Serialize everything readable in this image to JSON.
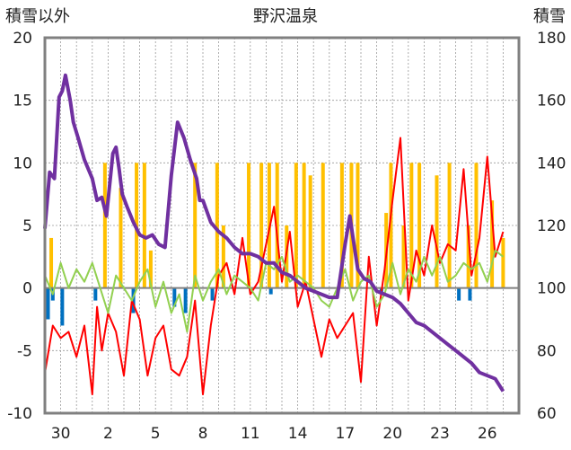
{
  "chart_data": {
    "type": "line",
    "title": "野沢温泉",
    "left_axis_label": "積雪以外",
    "right_axis_label": "積雪",
    "left_ylim": [
      -10,
      20
    ],
    "right_ylim": [
      60,
      180
    ],
    "left_ticks": [
      "20",
      "15",
      "10",
      "5",
      "0",
      "-5",
      "-10"
    ],
    "right_ticks": [
      "180",
      "160",
      "140",
      "120",
      "100",
      "80",
      "60"
    ],
    "x_tick_labels": [
      "30",
      "2",
      "5",
      "8",
      "11",
      "14",
      "17",
      "20",
      "23",
      "26"
    ],
    "x_tick_days": [
      1,
      4,
      7,
      10,
      13,
      16,
      19,
      22,
      25,
      28
    ],
    "x_range": [
      0,
      30
    ],
    "grid": true,
    "colors": {
      "snow_depth": "#7030a0",
      "temperature": "#ff0000",
      "temp_anomaly": "#92d050",
      "snowfall": "#ffc000",
      "negative_bars": "#0070c0",
      "zero_line": "#808080",
      "frame": "#808080"
    },
    "series": [
      {
        "role": "snow_depth",
        "axis": "right",
        "x": [
          0,
          0.3,
          0.6,
          0.9,
          1.1,
          1.3,
          1.6,
          1.8,
          2.1,
          2.5,
          3.0,
          3.3,
          3.6,
          3.9,
          4.3,
          4.5,
          4.7,
          4.9,
          5.2,
          5.6,
          6.0,
          6.4,
          6.8,
          7.2,
          7.6,
          8.0,
          8.4,
          8.8,
          9.2,
          9.6,
          9.8,
          10.0,
          10.5,
          11.0,
          11.5,
          12.0,
          12.5,
          13.0,
          13.5,
          14.0,
          14.5,
          15.0,
          15.5,
          16.0,
          16.5,
          17.0,
          17.5,
          18.0,
          18.5,
          19.0,
          19.3,
          19.5,
          19.8,
          20.2,
          20.6,
          21.0,
          21.5,
          22.0,
          22.5,
          23.0,
          23.5,
          24.0,
          24.5,
          25.0,
          25.5,
          26.0,
          26.5,
          27.0,
          27.5,
          28.0,
          28.5,
          29.0
        ],
        "values": [
          119,
          137,
          135,
          161,
          163,
          168,
          160,
          153,
          148,
          141,
          135,
          128,
          129,
          123,
          143,
          145,
          138,
          130,
          126,
          121,
          117,
          116,
          117,
          114,
          113,
          136,
          153,
          148,
          141,
          135,
          128,
          128,
          121,
          118,
          116,
          113,
          111,
          111,
          110,
          108,
          108,
          105,
          104,
          102,
          100,
          99,
          98,
          97,
          97,
          114,
          123,
          116,
          106,
          103,
          102,
          99,
          98,
          97,
          95,
          92,
          89,
          88,
          86,
          84,
          82,
          80,
          78,
          76,
          73,
          72,
          71,
          67
        ]
      },
      {
        "role": "temperature",
        "axis": "left",
        "x": [
          0,
          0.5,
          1.0,
          1.5,
          2.0,
          2.5,
          3.0,
          3.3,
          3.6,
          4.0,
          4.5,
          5.0,
          5.5,
          6.0,
          6.5,
          7.0,
          7.5,
          8.0,
          8.5,
          9.0,
          9.5,
          10.0,
          10.5,
          11.0,
          11.5,
          12.0,
          12.5,
          13.0,
          13.5,
          14.0,
          14.5,
          15.0,
          15.5,
          16.0,
          16.5,
          17.0,
          17.5,
          18.0,
          18.5,
          19.0,
          19.5,
          20.0,
          20.5,
          21.0,
          21.5,
          22.0,
          22.5,
          23.0,
          23.5,
          24.0,
          24.5,
          25.0,
          25.5,
          26.0,
          26.5,
          27.0,
          27.5,
          28.0,
          28.5,
          29.0
        ],
        "values": [
          -6.8,
          -3,
          -4,
          -3.5,
          -5.5,
          -3,
          -8.5,
          -1.5,
          -5,
          -2,
          -3.5,
          -7,
          -1,
          -2.5,
          -7,
          -4,
          -3,
          -6.5,
          -7,
          -5.5,
          -1,
          -8.5,
          -3,
          1,
          2,
          -0.5,
          4,
          -0.5,
          0.5,
          3.5,
          6.5,
          0.5,
          4.5,
          -1.5,
          0.5,
          -2.5,
          -5.5,
          -2.5,
          -4,
          -3,
          -2,
          -7.5,
          2.5,
          -3,
          1.5,
          7,
          12,
          -1,
          3,
          1,
          5,
          2,
          3.5,
          3,
          9.5,
          1,
          4,
          10.5,
          2.5,
          4.5
        ]
      },
      {
        "role": "temp_anomaly",
        "axis": "left",
        "x": [
          0,
          0.5,
          1.0,
          1.5,
          2.0,
          2.5,
          3.0,
          3.5,
          4.0,
          4.5,
          5.0,
          5.5,
          6.0,
          6.5,
          7.0,
          7.5,
          8.0,
          8.5,
          9.0,
          9.5,
          10.0,
          10.5,
          11.0,
          11.5,
          12.0,
          12.5,
          13.0,
          13.5,
          14.0,
          14.5,
          15.0,
          15.5,
          16.0,
          16.5,
          17.0,
          17.5,
          18.0,
          18.5,
          19.0,
          19.5,
          20.0,
          20.5,
          21.0,
          21.5,
          22.0,
          22.5,
          23.0,
          23.5,
          24.0,
          24.5,
          25.0,
          25.5,
          26.0,
          26.5,
          27.0,
          27.5,
          28.0,
          28.5,
          29.0
        ],
        "values": [
          1,
          -0.5,
          2,
          0,
          1.5,
          0.5,
          2,
          0,
          -2,
          1,
          0,
          -1,
          0.5,
          1.5,
          -1.5,
          0.5,
          -2,
          -0.5,
          -3.5,
          1,
          -1,
          0.5,
          1.5,
          -0.5,
          1,
          0.5,
          0,
          -1,
          2,
          1.5,
          2.5,
          0.5,
          1,
          0.5,
          0,
          -1,
          -1.5,
          0,
          1.5,
          -1,
          0.5,
          1,
          -1.5,
          -0.5,
          2,
          -0.5,
          1.5,
          0.5,
          2.5,
          1,
          2.5,
          0.5,
          1,
          2,
          1.5,
          2,
          0.5,
          3,
          2.5
        ]
      },
      {
        "role": "snowfall",
        "axis": "left",
        "type": "bar",
        "x": [
          0.4,
          3.8,
          4.8,
          5.8,
          6.3,
          6.7,
          9.5,
          10.9,
          11.3,
          12.9,
          13.7,
          14.2,
          14.7,
          15.3,
          15.9,
          16.4,
          16.8,
          17.6,
          18.8,
          19.4,
          19.8,
          21.6,
          21.9,
          22.7,
          23.2,
          23.7,
          24.8,
          25.6,
          26.8,
          27.3,
          28.3,
          29.0
        ],
        "values": [
          4,
          10,
          8,
          10,
          10,
          3,
          10,
          10,
          5,
          10,
          10,
          10,
          10,
          5,
          10,
          10,
          9,
          10,
          10,
          10,
          10,
          6,
          10,
          5,
          10,
          10,
          9,
          10,
          5,
          10,
          7,
          4
        ]
      },
      {
        "role": "negative_bars",
        "axis": "left",
        "type": "bar",
        "x": [
          0.2,
          0.5,
          1.1,
          3.2,
          5.6,
          8.2,
          8.9,
          10.6,
          14.3,
          21.3,
          26.2,
          26.9
        ],
        "values": [
          -2.5,
          -1,
          -3,
          -1,
          -2,
          -1.5,
          -2,
          -1,
          -0.5,
          -0.5,
          -1,
          -1
        ]
      }
    ]
  }
}
